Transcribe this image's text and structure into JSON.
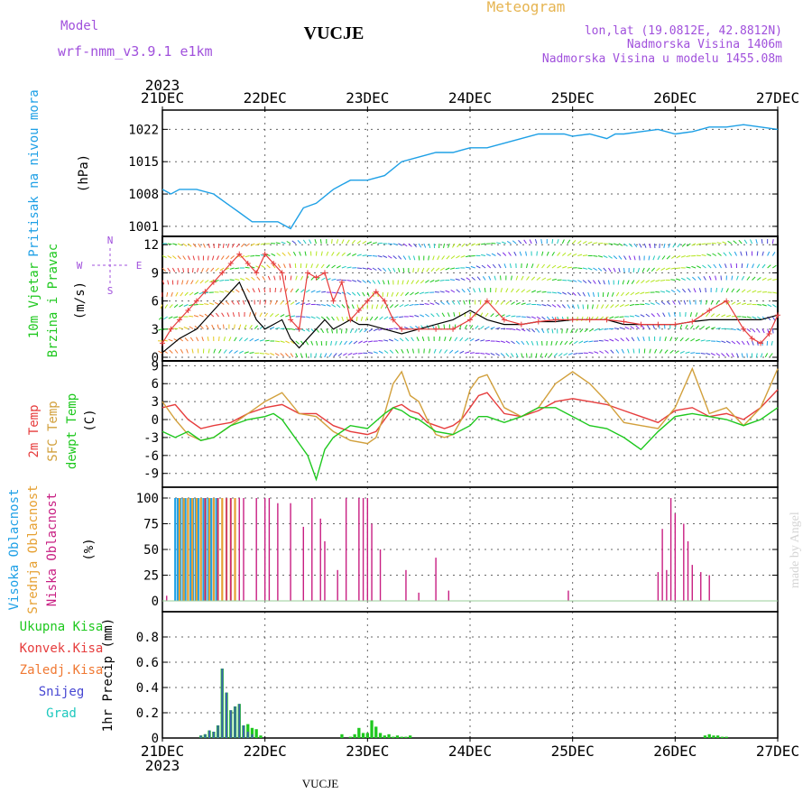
{
  "header": {
    "model_label": "Model",
    "model_name": "wrf-nmm_v3.9.1 e1km",
    "station": "VUCJE",
    "product": "Meteogram",
    "coords": "lon,lat (19.0812E, 42.8812N)",
    "altitude": "Nadmorska Visina 1406m",
    "model_altitude": "Nadmorska Visina u modelu 1455.08m",
    "footer_station": "VUCJE",
    "watermark": "made by Angel"
  },
  "colors": {
    "pressure": "#1ea0e6",
    "temp2m": "#e63c3c",
    "sfc": "#d2a03c",
    "dewpt": "#1ec81e",
    "cloud_high": "#1ea0e6",
    "cloud_mid": "#e6a032",
    "cloud_low": "#c81e82",
    "precip_total": "#1ec81e",
    "precip_conv": "#e63c3c",
    "precip_frz": "#f07832",
    "precip_snow": "#4646d2",
    "precip_grad": "#1ec8be",
    "wind_gust": "#e63c3c",
    "wind_speed": "#000000"
  },
  "chart_data": [
    {
      "type": "line",
      "panel": "pressure",
      "ylabel": [
        "Pritisak na nivou mora",
        "(hPa)"
      ],
      "ylim": [
        1000,
        1025
      ],
      "yticks": [
        1001,
        1008,
        1015,
        1022
      ],
      "xlim": [
        0,
        144
      ],
      "xticks": [
        "21DEC",
        "22DEC",
        "23DEC",
        "24DEC",
        "25DEC",
        "26DEC",
        "27DEC"
      ],
      "year": "2023",
      "series": [
        {
          "values_x": [
            0,
            2,
            4,
            8,
            12,
            15,
            18,
            21,
            24,
            27,
            30,
            33,
            36,
            40,
            42,
            44,
            48,
            52,
            56,
            60,
            64,
            68,
            72,
            76,
            80,
            84,
            88,
            90,
            94,
            96,
            100,
            104,
            106,
            108,
            112,
            116,
            120,
            124,
            126,
            128,
            132,
            136,
            140,
            144
          ],
          "values_y": [
            1009,
            1008,
            1009,
            1009,
            1008,
            1006,
            1004,
            1002,
            1002,
            1002,
            1000.5,
            1005,
            1006,
            1009,
            1010,
            1011,
            1011,
            1012,
            1015,
            1016,
            1017,
            1017,
            1018,
            1018,
            1019,
            1020,
            1021,
            1021,
            1021,
            1020.5,
            1021,
            1020,
            1021,
            1021,
            1021.5,
            1022,
            1021,
            1021.5,
            1022,
            1022.5,
            1022.5,
            1023,
            1022.5,
            1022
          ]
        }
      ]
    },
    {
      "type": "line",
      "panel": "wind",
      "ylabel": [
        "10m Vjetar",
        "Brzina i Pravac",
        "(m/s)"
      ],
      "compass": [
        "N",
        "W",
        "E",
        "S"
      ],
      "ylim": [
        0,
        12.5
      ],
      "yticks": [
        0,
        3,
        6,
        9,
        12
      ],
      "series": [
        {
          "name": "speed",
          "values_x": [
            0,
            4,
            8,
            10,
            12,
            14,
            16,
            18,
            20,
            22,
            24,
            26,
            28,
            30,
            32,
            34,
            36,
            38,
            40,
            42,
            44,
            46,
            48,
            52,
            56,
            60,
            64,
            68,
            72,
            76,
            80,
            84,
            88,
            92,
            96,
            100,
            104,
            108,
            112,
            116,
            120,
            124,
            128,
            132,
            136,
            140,
            144
          ],
          "values_y": [
            0.5,
            2,
            3,
            4,
            5,
            6,
            7,
            8,
            6,
            4,
            3,
            3.5,
            4,
            2,
            1,
            2,
            3,
            4,
            3,
            3.5,
            4,
            3.5,
            3.5,
            3,
            2.5,
            3,
            3.5,
            4,
            5,
            4,
            3.5,
            3.5,
            3.8,
            3.8,
            4,
            4,
            4,
            3.5,
            3.5,
            3.5,
            3.5,
            3.8,
            4,
            4,
            4,
            4,
            4.5
          ]
        },
        {
          "name": "gust",
          "values_x": [
            0,
            2,
            4,
            6,
            8,
            10,
            12,
            14,
            16,
            18,
            20,
            22,
            24,
            26,
            28,
            30,
            32,
            34,
            36,
            38,
            40,
            42,
            44,
            46,
            48,
            50,
            52,
            54,
            56,
            60,
            64,
            68,
            72,
            76,
            80,
            84,
            88,
            92,
            96,
            100,
            104,
            108,
            112,
            116,
            120,
            124,
            128,
            132,
            136,
            138,
            140,
            142,
            144
          ],
          "values_y": [
            1.5,
            3,
            4,
            5,
            6,
            7,
            8,
            9,
            10,
            11,
            10,
            9,
            11,
            10,
            9,
            4,
            3,
            9,
            8.5,
            9,
            6,
            8,
            4,
            5,
            6,
            7,
            6,
            4,
            3,
            3,
            3,
            3,
            4,
            6,
            4,
            3.5,
            3.8,
            4,
            4,
            4,
            4,
            3.8,
            3.5,
            3.5,
            3.5,
            3.8,
            5,
            6,
            3,
            2,
            1.5,
            2.5,
            4.5
          ]
        }
      ]
    },
    {
      "type": "line",
      "panel": "temperature",
      "ylabel": [
        "2m Temp",
        "SFC Temp",
        "dewpt Temp",
        "(C)"
      ],
      "ylim": [
        -11,
        9.5
      ],
      "yticks": [
        9,
        6,
        3,
        0,
        -3,
        -6,
        -9
      ],
      "series": [
        {
          "name": "2m",
          "values_x": [
            0,
            3,
            6,
            9,
            12,
            16,
            20,
            24,
            28,
            32,
            36,
            40,
            44,
            48,
            50,
            52,
            54,
            56,
            58,
            60,
            62,
            64,
            66,
            68,
            70,
            72,
            74,
            76,
            80,
            84,
            88,
            92,
            96,
            100,
            104,
            108,
            112,
            116,
            120,
            124,
            128,
            132,
            136,
            140,
            144
          ],
          "values_y": [
            2,
            2.5,
            0,
            -1.5,
            -1,
            -0.5,
            1,
            2,
            2.5,
            1,
            1,
            -1,
            -2,
            -2.5,
            -2,
            0,
            2,
            2.5,
            1.5,
            1,
            -0.5,
            -1,
            -1.5,
            -1,
            0,
            2,
            4,
            4.5,
            1,
            0.5,
            1.5,
            3,
            3.5,
            3,
            2.5,
            1.5,
            0.5,
            -0.5,
            1.5,
            2,
            0.5,
            1,
            0,
            2,
            5
          ]
        },
        {
          "name": "sfc",
          "values_x": [
            0,
            3,
            6,
            9,
            12,
            16,
            20,
            24,
            28,
            32,
            36,
            40,
            44,
            48,
            50,
            52,
            54,
            56,
            58,
            60,
            62,
            64,
            66,
            68,
            70,
            72,
            74,
            76,
            80,
            84,
            88,
            92,
            96,
            100,
            104,
            108,
            112,
            116,
            120,
            124,
            128,
            132,
            136,
            140,
            144
          ],
          "values_y": [
            3,
            0,
            -2.5,
            -3.5,
            -3,
            -1,
            1,
            3,
            4.5,
            1,
            0.5,
            -2,
            -3.5,
            -4,
            -3,
            1,
            6,
            8,
            4,
            3,
            0,
            -2.5,
            -3,
            -2.5,
            0,
            5,
            7,
            7.5,
            2,
            0.5,
            2,
            6,
            8,
            6,
            3,
            -0.5,
            -1,
            -1.5,
            2,
            8.5,
            1,
            2,
            -1,
            2,
            8.5
          ]
        },
        {
          "name": "dewpt",
          "values_x": [
            0,
            3,
            6,
            9,
            12,
            16,
            20,
            24,
            26,
            28,
            30,
            32,
            34,
            36,
            38,
            40,
            44,
            48,
            52,
            54,
            56,
            58,
            60,
            64,
            68,
            72,
            74,
            76,
            80,
            84,
            88,
            92,
            96,
            100,
            104,
            108,
            112,
            116,
            120,
            124,
            128,
            132,
            136,
            140,
            144
          ],
          "values_y": [
            -2,
            -3,
            -2,
            -3.5,
            -3,
            -1,
            0,
            0.5,
            1,
            0,
            -2,
            -4,
            -6,
            -10,
            -5,
            -3,
            -1,
            -1.5,
            1,
            2,
            1.5,
            0.5,
            0,
            -2,
            -2.5,
            -1,
            0.5,
            0.5,
            -0.5,
            0.5,
            2,
            2,
            0.5,
            -1,
            -1.5,
            -3,
            -5,
            -2,
            0.5,
            1,
            0.5,
            0,
            -1,
            0,
            2
          ]
        }
      ]
    },
    {
      "type": "bar",
      "panel": "clouds",
      "ylabel": [
        "Visoka Oblacnost",
        "Srednja Oblacnost",
        "Niska Oblacnost",
        "(%)"
      ],
      "ylim": [
        0,
        100
      ],
      "yticks": [
        0,
        25,
        50,
        75,
        100
      ],
      "series": [
        {
          "name": "high",
          "x": [
            3,
            3.6,
            4.2,
            4.8,
            5.4,
            6,
            6.6,
            7.2,
            7.8,
            8.4,
            9,
            9.6,
            10.2,
            10.8,
            11.4,
            12,
            12.6
          ],
          "values": [
            100,
            100,
            100,
            100,
            100,
            100,
            100,
            100,
            100,
            100,
            100,
            100,
            100,
            100,
            100,
            100,
            100
          ]
        },
        {
          "name": "mid",
          "x": [
            4,
            5,
            6,
            7,
            8,
            9,
            10,
            11,
            12,
            13,
            14,
            15,
            16,
            17
          ],
          "values": [
            100,
            100,
            100,
            100,
            100,
            100,
            100,
            100,
            100,
            100,
            100,
            100,
            100,
            100
          ]
        },
        {
          "name": "low",
          "x": [
            1,
            10,
            13,
            15,
            16,
            18,
            19,
            22,
            24,
            25,
            27,
            30,
            33,
            35,
            37,
            38,
            41,
            43,
            46,
            47,
            48,
            49,
            51,
            57,
            60,
            64,
            67,
            95,
            116,
            117,
            118,
            119,
            120,
            122,
            123,
            124,
            126,
            128,
            130
          ],
          "values": [
            5,
            100,
            100,
            100,
            100,
            100,
            100,
            100,
            100,
            100,
            95,
            95,
            72,
            100,
            80,
            58,
            30,
            100,
            100,
            100,
            100,
            75,
            50,
            30,
            8,
            42,
            10,
            10,
            28,
            70,
            30,
            100,
            85,
            75,
            58,
            35,
            28,
            25,
            0
          ]
        }
      ]
    },
    {
      "type": "bar",
      "panel": "precip",
      "ylabel": [
        "Ukupna Kisa",
        "Konvek.Kisa",
        "Zaledj.Kisa",
        "Snijeg",
        "Grad",
        "1hr Precip (mm)"
      ],
      "ylim": [
        0,
        1
      ],
      "yticks": [
        0,
        0.2,
        0.4,
        0.6,
        0.8
      ],
      "series": [
        {
          "name": "total",
          "x": [
            9,
            10,
            11,
            12,
            13,
            14,
            15,
            16,
            17,
            18,
            19,
            20,
            21,
            22,
            23,
            42,
            44,
            45,
            46,
            47,
            48,
            49,
            50,
            51,
            52,
            53,
            54,
            55,
            56,
            57,
            58,
            127,
            128,
            129,
            130,
            131,
            132
          ],
          "values": [
            0.02,
            0.03,
            0.06,
            0.05,
            0.1,
            0.55,
            0.36,
            0.22,
            0.25,
            0.27,
            0.1,
            0.11,
            0.08,
            0.07,
            0.02,
            0.03,
            0.01,
            0.03,
            0.08,
            0.04,
            0.04,
            0.14,
            0.09,
            0.04,
            0.02,
            0.03,
            0.01,
            0.02,
            0.01,
            0.01,
            0.02,
            0.02,
            0.03,
            0.02,
            0.02,
            0.01,
            0.01
          ]
        },
        {
          "name": "snow",
          "x": [
            9,
            10,
            11,
            12,
            13,
            14,
            15,
            16,
            17,
            18,
            19,
            20,
            21
          ],
          "values": [
            0.02,
            0.03,
            0.06,
            0.05,
            0.1,
            0.55,
            0.36,
            0.22,
            0.25,
            0.27,
            0.1,
            0.05,
            0.03
          ]
        }
      ]
    }
  ]
}
